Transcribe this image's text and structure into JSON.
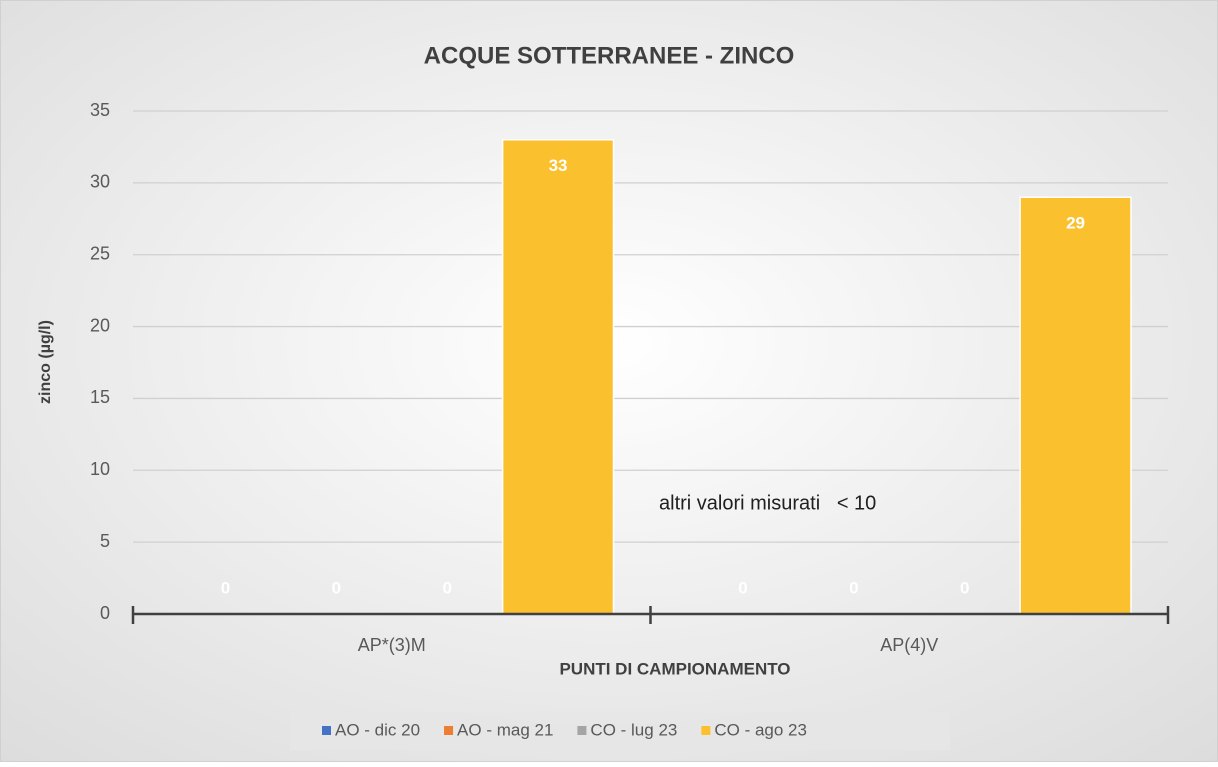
{
  "chart_data": {
    "type": "bar",
    "title": "ACQUE SOTTERRANEE - ZINCO",
    "x_label": "PUNTI DI CAMPIONAMENTO",
    "y_label": "zinco (µg/l)",
    "annotations": [
      "altri valori misurati   < 10"
    ],
    "categories": [
      "AP*(3)M",
      "AP(4)V"
    ],
    "series": [
      {
        "name": "AO - dic 20",
        "color": "#4472c4",
        "values": [
          0,
          0
        ]
      },
      {
        "name": "AO - mag 21",
        "color": "#ed7d31",
        "values": [
          0,
          0
        ]
      },
      {
        "name": "CO - lug 23",
        "color": "#a5a5a5",
        "values": [
          0,
          0
        ]
      },
      {
        "name": "CO - ago 23",
        "color": "#fbc02d",
        "values": [
          33,
          29
        ]
      }
    ],
    "ylim": [
      0,
      35
    ],
    "yticks": [
      0,
      5,
      10,
      15,
      20,
      25,
      30,
      35
    ],
    "grid": true,
    "data_labels": true,
    "legend": "bottom"
  }
}
